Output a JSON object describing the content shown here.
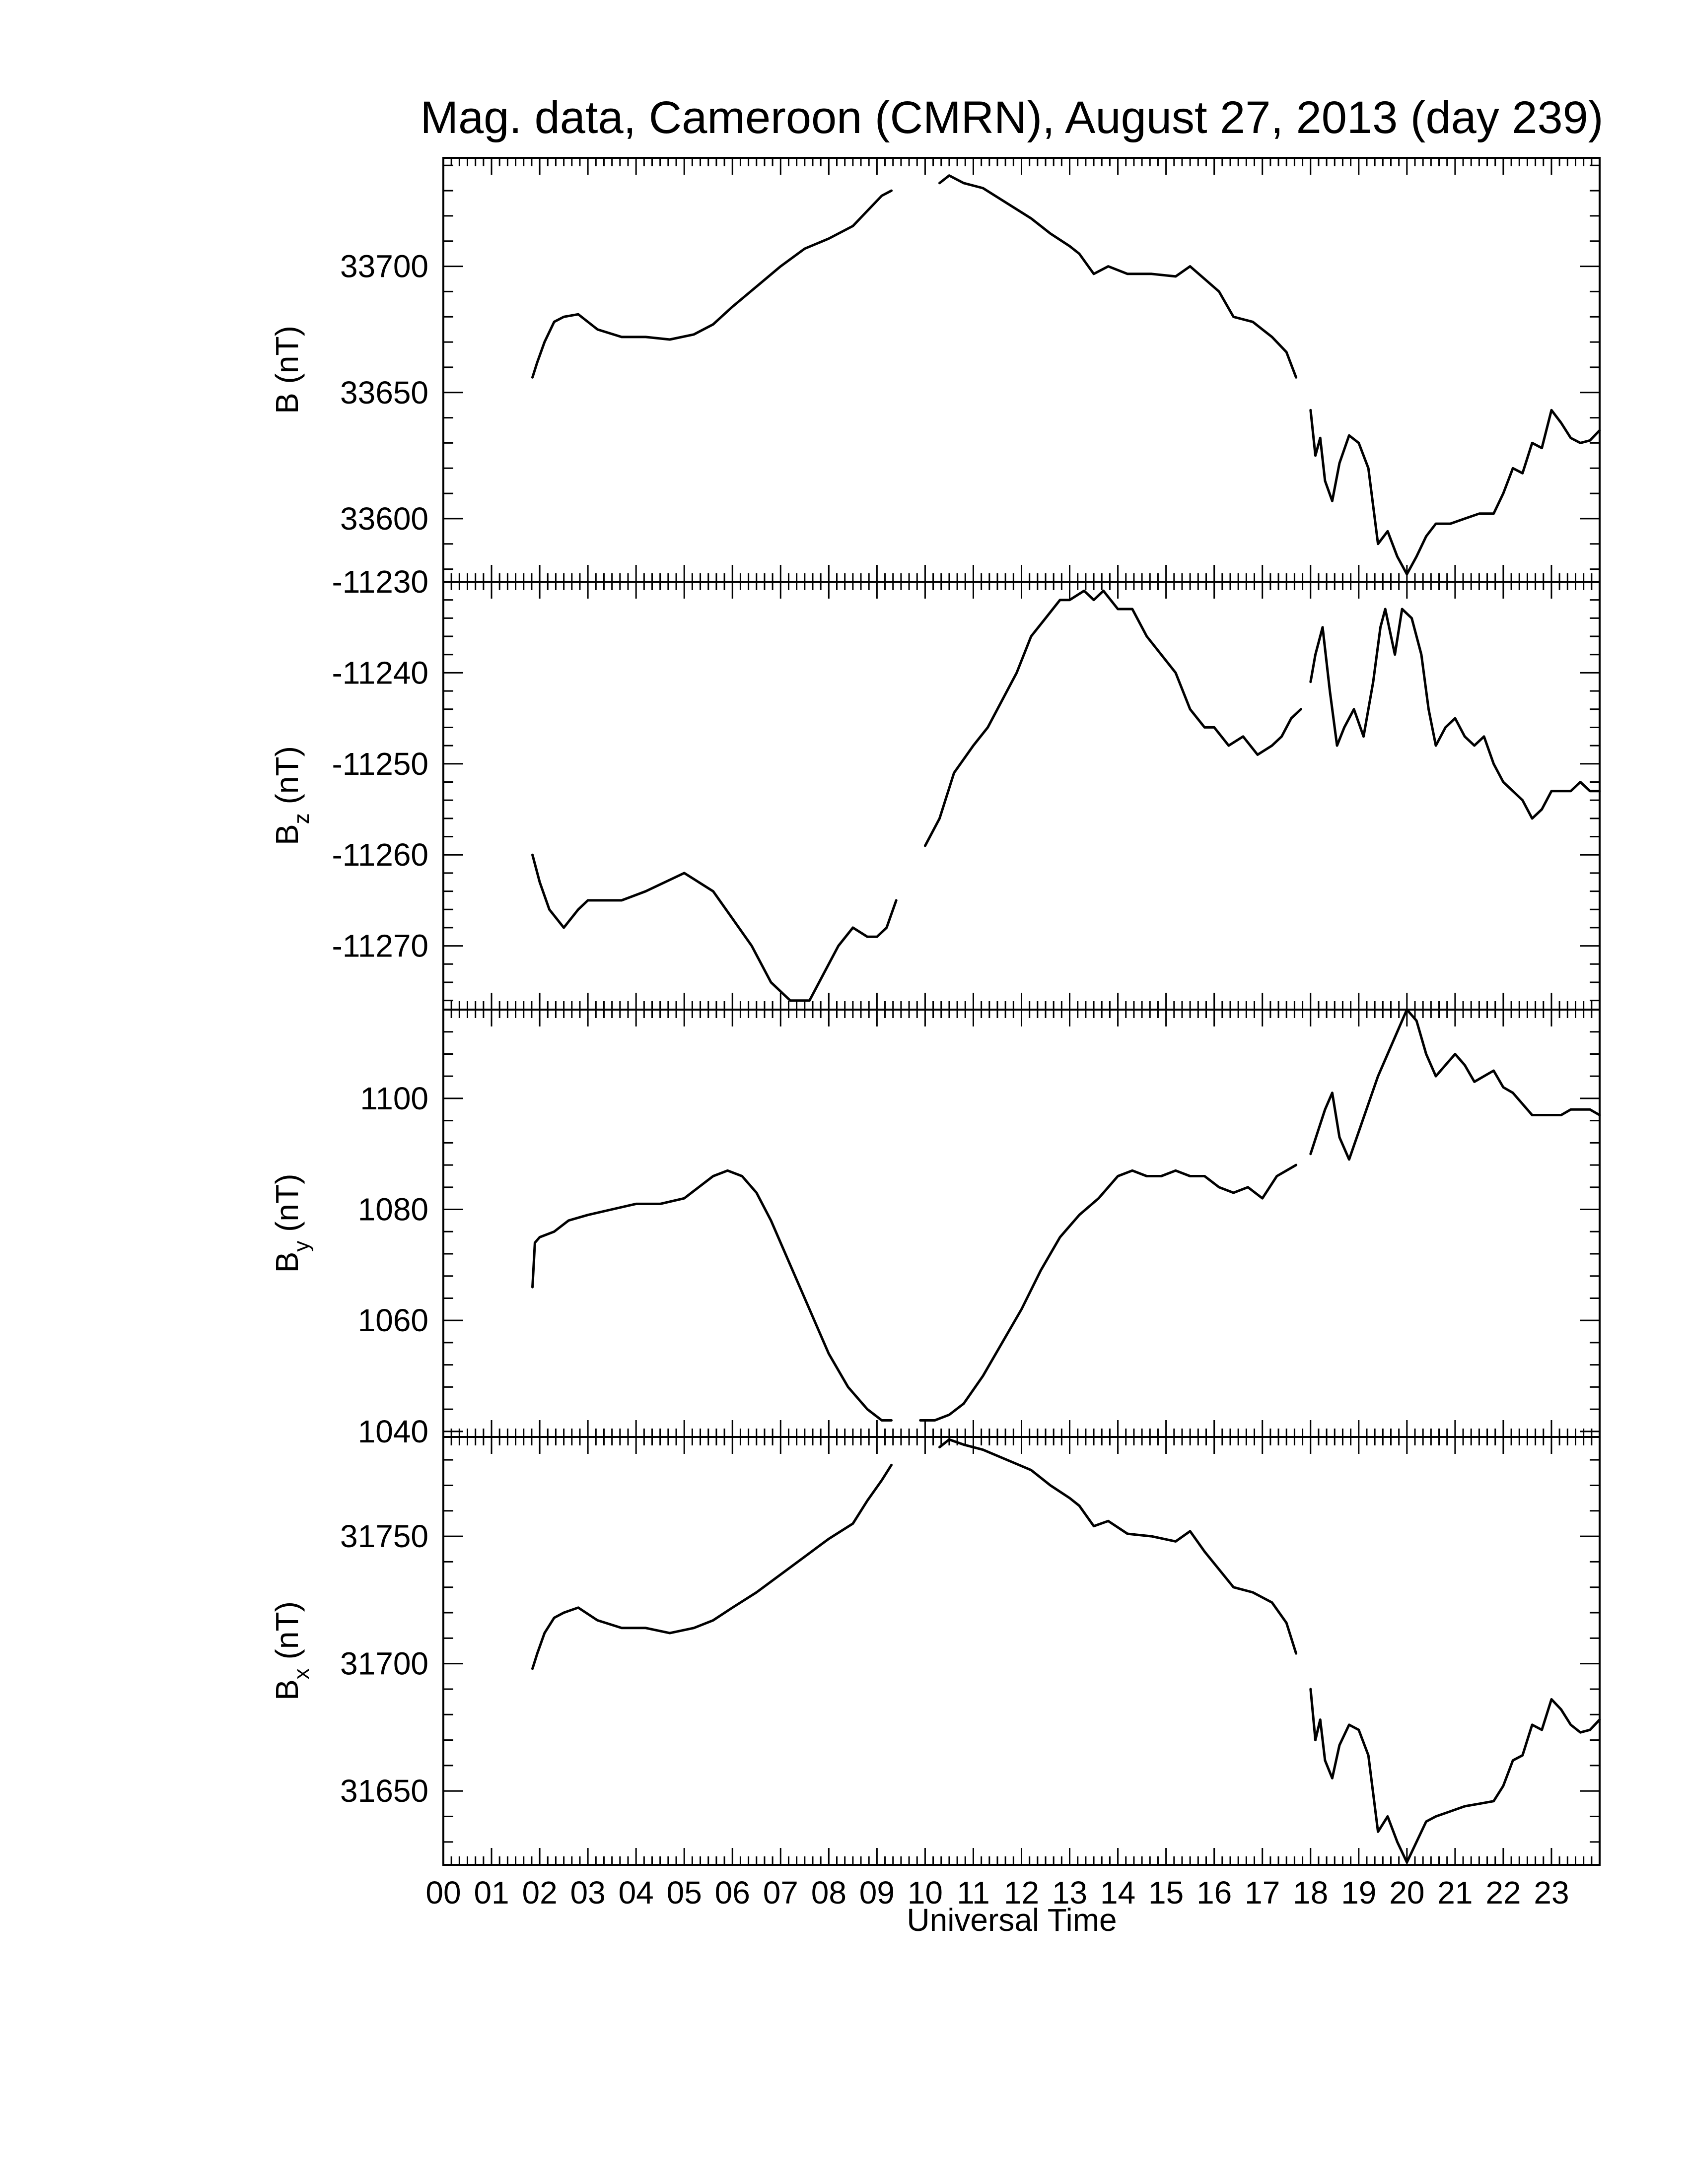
{
  "figure": {
    "title": "Mag. data, Cameroon (CMRN), August 27, 2013 (day 239)",
    "xlabel": "Universal Time",
    "x_tick_labels": [
      "00",
      "01",
      "02",
      "03",
      "04",
      "05",
      "06",
      "07",
      "08",
      "09",
      "10",
      "11",
      "12",
      "13",
      "14",
      "15",
      "16",
      "17",
      "18",
      "19",
      "20",
      "21",
      "22",
      "23"
    ]
  },
  "chart_data": [
    {
      "type": "line",
      "ylabel_main": "B",
      "ylabel_sub": "",
      "ylabel_unit": " (nT)",
      "ylim": [
        33575,
        33743
      ],
      "yticks": [
        33600,
        33650,
        33700
      ],
      "xlabel": "Universal Time",
      "xlim": [
        0,
        24
      ],
      "series": [
        {
          "segments": [
            {
              "x": [
                1.85,
                1.95,
                2.1,
                2.3,
                2.5,
                2.8,
                3.2,
                3.7,
                4.2,
                4.7,
                5.2,
                5.6,
                6.0,
                6.5,
                7.0,
                7.5,
                8.0,
                8.5,
                8.8,
                9.1,
                9.3
              ],
              "y": [
                33656,
                33662,
                33670,
                33678,
                33680,
                33681,
                33675,
                33672,
                33672,
                33671,
                33673,
                33677,
                33684,
                33692,
                33700,
                33707,
                33711,
                33716,
                33722,
                33728,
                33730
              ]
            },
            {
              "x": [
                10.3,
                10.5,
                10.8,
                11.2,
                11.7,
                12.2,
                12.6,
                13.0,
                13.2,
                13.5,
                13.8,
                14.2,
                14.7,
                15.2,
                15.5,
                15.8,
                16.1,
                16.4,
                16.8,
                17.2,
                17.5,
                17.7
              ],
              "y": [
                33733,
                33736,
                33733,
                33731,
                33725,
                33719,
                33713,
                33708,
                33705,
                33697,
                33700,
                33697,
                33697,
                33696,
                33700,
                33695,
                33690,
                33680,
                33678,
                33672,
                33666,
                33656
              ]
            },
            {
              "x": [
                18.0,
                18.1,
                18.2,
                18.3,
                18.45,
                18.6,
                18.8,
                19.0,
                19.2,
                19.4,
                19.6,
                19.8,
                20.0,
                20.2,
                20.4,
                20.6,
                20.9,
                21.2,
                21.5,
                21.8,
                22.0,
                22.2,
                22.4,
                22.6,
                22.8,
                23.0,
                23.2,
                23.4,
                23.6,
                23.8,
                24.0
              ],
              "y": [
                33643,
                33625,
                33632,
                33615,
                33607,
                33622,
                33633,
                33630,
                33620,
                33590,
                33595,
                33585,
                33578,
                33585,
                33593,
                33598,
                33598,
                33600,
                33602,
                33602,
                33610,
                33620,
                33618,
                33630,
                33628,
                33643,
                33638,
                33632,
                33630,
                33631,
                33635
              ]
            }
          ]
        }
      ]
    },
    {
      "type": "line",
      "ylabel_main": "B",
      "ylabel_sub": "z",
      "ylabel_unit": " (nT)",
      "ylim": [
        -11277,
        -11230
      ],
      "yticks": [
        -11270,
        -11260,
        -11250,
        -11240,
        -11230
      ],
      "xlabel": "Universal Time",
      "xlim": [
        0,
        24
      ],
      "series": [
        {
          "segments": [
            {
              "x": [
                1.85,
                2.0,
                2.2,
                2.5,
                2.8,
                3.0,
                3.3,
                3.7,
                4.2,
                4.6,
                5.0,
                5.3,
                5.6,
                6.0,
                6.4,
                6.8,
                7.2,
                7.6,
                7.9,
                8.2,
                8.5,
                8.8,
                9.0,
                9.2,
                9.4
              ],
              "y": [
                -11260,
                -11263,
                -11266,
                -11268,
                -11266,
                -11265,
                -11265,
                -11265,
                -11264,
                -11263,
                -11262,
                -11263,
                -11264,
                -11267,
                -11270,
                -11274,
                -11276,
                -11276,
                -11273,
                -11270,
                -11268,
                -11269,
                -11269,
                -11268,
                -11265
              ]
            },
            {
              "x": [
                10.0,
                10.3,
                10.6,
                11.0,
                11.3,
                11.6,
                11.9,
                12.2,
                12.5,
                12.8,
                13.0,
                13.3,
                13.5,
                13.7,
                14.0,
                14.3,
                14.6,
                14.9,
                15.2,
                15.5,
                15.8,
                16.0,
                16.3,
                16.6,
                16.9,
                17.2,
                17.4,
                17.6,
                17.8
              ],
              "y": [
                -11259,
                -11256,
                -11251,
                -11248,
                -11246,
                -11243,
                -11240,
                -11236,
                -11234,
                -11232,
                -11232,
                -11231,
                -11232,
                -11231,
                -11233,
                -11233,
                -11236,
                -11238,
                -11240,
                -11244,
                -11246,
                -11246,
                -11248,
                -11247,
                -11249,
                -11248,
                -11247,
                -11245,
                -11244
              ]
            },
            {
              "x": [
                18.0,
                18.1,
                18.25,
                18.4,
                18.55,
                18.7,
                18.9,
                19.1,
                19.3,
                19.45,
                19.55,
                19.75,
                19.9,
                20.1,
                20.3,
                20.45,
                20.6,
                20.8,
                21.0,
                21.2,
                21.4,
                21.6,
                21.8,
                22.0,
                22.2,
                22.4,
                22.6,
                22.8,
                23.0,
                23.2,
                23.4,
                23.6,
                23.8,
                24.0
              ],
              "y": [
                -11241,
                -11238,
                -11235,
                -11242,
                -11248,
                -11246,
                -11244,
                -11247,
                -11241,
                -11235,
                -11233,
                -11238,
                -11233,
                -11234,
                -11238,
                -11244,
                -11248,
                -11246,
                -11245,
                -11247,
                -11248,
                -11247,
                -11250,
                -11252,
                -11253,
                -11254,
                -11256,
                -11255,
                -11253,
                -11253,
                -11253,
                -11252,
                -11253,
                -11253
              ]
            }
          ]
        }
      ]
    },
    {
      "type": "line",
      "ylabel_main": "B",
      "ylabel_sub": "y",
      "ylabel_unit": " (nT)",
      "ylim": [
        1039,
        1116
      ],
      "yticks": [
        1040,
        1060,
        1080,
        1100
      ],
      "xlabel": "Universal Time",
      "xlim": [
        0,
        24
      ],
      "series": [
        {
          "segments": [
            {
              "x": [
                1.85,
                1.9,
                2.0,
                2.3,
                2.6,
                3.0,
                3.5,
                4.0,
                4.5,
                5.0,
                5.3,
                5.6,
                5.9,
                6.2,
                6.5,
                6.8,
                7.2,
                7.6,
                8.0,
                8.4,
                8.8,
                9.1,
                9.3
              ],
              "y": [
                1066,
                1074,
                1075,
                1076,
                1078,
                1079,
                1080,
                1081,
                1081,
                1082,
                1084,
                1086,
                1087,
                1086,
                1083,
                1078,
                1070,
                1062,
                1054,
                1048,
                1044,
                1042,
                1042
              ]
            },
            {
              "x": [
                9.9,
                10.2,
                10.5,
                10.8,
                11.2,
                11.6,
                12.0,
                12.4,
                12.8,
                13.2,
                13.6,
                14.0,
                14.3,
                14.6,
                14.9,
                15.2,
                15.5,
                15.8,
                16.1,
                16.4,
                16.7,
                17.0,
                17.3,
                17.5,
                17.7
              ],
              "y": [
                1042,
                1042,
                1043,
                1045,
                1050,
                1056,
                1062,
                1069,
                1075,
                1079,
                1082,
                1086,
                1087,
                1086,
                1086,
                1087,
                1086,
                1086,
                1084,
                1083,
                1084,
                1082,
                1086,
                1087,
                1088
              ]
            },
            {
              "x": [
                18.0,
                18.15,
                18.3,
                18.45,
                18.6,
                18.8,
                19.0,
                19.2,
                19.4,
                19.6,
                19.8,
                20.0,
                20.2,
                20.4,
                20.6,
                20.8,
                21.0,
                21.2,
                21.4,
                21.6,
                21.8,
                22.0,
                22.2,
                22.4,
                22.6,
                22.8,
                23.0,
                23.2,
                23.4,
                23.6,
                23.8,
                24.0
              ],
              "y": [
                1090,
                1094,
                1098,
                1101,
                1093,
                1089,
                1094,
                1099,
                1104,
                1108,
                1112,
                1116,
                1114,
                1108,
                1104,
                1106,
                1108,
                1106,
                1103,
                1104,
                1105,
                1102,
                1101,
                1099,
                1097,
                1097,
                1097,
                1097,
                1098,
                1098,
                1098,
                1097
              ]
            }
          ]
        }
      ]
    },
    {
      "type": "line",
      "ylabel_main": "B",
      "ylabel_sub": "x",
      "ylabel_unit": " (nT)",
      "ylim": [
        1621,
        1789
      ],
      "yticks": [
        31650,
        31700,
        31750
      ],
      "ylim_data": [
        31621,
        31789
      ],
      "xlabel": "Universal Time",
      "xlim": [
        0,
        24
      ],
      "series": [
        {
          "segments": [
            {
              "x": [
                1.85,
                1.95,
                2.1,
                2.3,
                2.5,
                2.8,
                3.2,
                3.7,
                4.2,
                4.7,
                5.2,
                5.6,
                6.0,
                6.5,
                7.0,
                7.5,
                8.0,
                8.5,
                8.8,
                9.1,
                9.3
              ],
              "y": [
                31698,
                31704,
                31712,
                31718,
                31720,
                31722,
                31717,
                31714,
                31714,
                31712,
                31714,
                31717,
                31722,
                31728,
                31735,
                31742,
                31749,
                31755,
                31764,
                31772,
                31778
              ]
            },
            {
              "x": [
                10.3,
                10.5,
                10.8,
                11.2,
                11.7,
                12.2,
                12.6,
                13.0,
                13.2,
                13.5,
                13.8,
                14.2,
                14.7,
                15.2,
                15.5,
                15.8,
                16.1,
                16.4,
                16.8,
                17.2,
                17.5,
                17.7
              ],
              "y": [
                31785,
                31788,
                31786,
                31784,
                31780,
                31776,
                31770,
                31765,
                31762,
                31754,
                31756,
                31751,
                31750,
                31748,
                31752,
                31744,
                31737,
                31730,
                31728,
                31724,
                31716,
                31704
              ]
            },
            {
              "x": [
                18.0,
                18.1,
                18.2,
                18.3,
                18.45,
                18.6,
                18.8,
                19.0,
                19.2,
                19.4,
                19.6,
                19.8,
                20.0,
                20.2,
                20.4,
                20.6,
                20.9,
                21.2,
                21.5,
                21.8,
                22.0,
                22.2,
                22.4,
                22.6,
                22.8,
                23.0,
                23.2,
                23.4,
                23.6,
                23.8,
                24.0
              ],
              "y": [
                31690,
                31670,
                31678,
                31662,
                31655,
                31668,
                31676,
                31674,
                31664,
                31634,
                31640,
                31630,
                31622,
                31630,
                31638,
                31640,
                31642,
                31644,
                31645,
                31646,
                31652,
                31662,
                31664,
                31676,
                31674,
                31686,
                31682,
                31676,
                31673,
                31674,
                31678
              ]
            }
          ]
        }
      ]
    }
  ]
}
